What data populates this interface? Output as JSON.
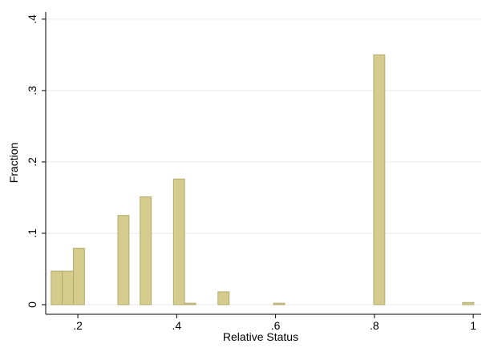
{
  "chart_data": {
    "type": "histogram",
    "x_label": "Relative Status",
    "y_label": "Fraction",
    "bins": [
      0.146,
      0.1685,
      0.191,
      0.2135,
      0.236,
      0.2585,
      0.281,
      0.3035,
      0.326,
      0.3485,
      0.371,
      0.3935,
      0.416,
      0.4385,
      0.461,
      0.4835,
      0.506,
      0.5285,
      0.551,
      0.5735,
      0.596,
      0.6185,
      0.641,
      0.6635,
      0.686,
      0.7085,
      0.731,
      0.7535,
      0.776,
      0.7985,
      0.821,
      0.8435,
      0.866,
      0.8885,
      0.911,
      0.9335,
      0.956,
      0.9785,
      1.001
    ],
    "values": [
      0.047,
      0.047,
      0.079,
      0,
      0,
      0,
      0.125,
      0,
      0.151,
      0,
      0,
      0.176,
      0.002,
      0,
      0,
      0.018,
      0,
      0,
      0,
      0,
      0.002,
      0,
      0,
      0,
      0,
      0,
      0,
      0,
      0,
      0.35,
      0,
      0,
      0,
      0,
      0,
      0,
      0,
      0.003
    ],
    "color": "#d4cb8c",
    "edge_color": "#b3aa6c",
    "xlim": [
      0.135,
      1.016
    ],
    "ylim": [
      -0.0135,
      0.41
    ],
    "xticks": [
      {
        "value": 0.2,
        "label": ".2"
      },
      {
        "value": 0.4,
        "label": ".4"
      },
      {
        "value": 0.6,
        "label": ".6"
      },
      {
        "value": 0.8,
        "label": ".8"
      },
      1
    ],
    "yticks": [
      0,
      {
        "value": 0.1,
        "label": ".1"
      },
      {
        "value": 0.2,
        "label": ".2"
      },
      {
        "value": 0.3,
        "label": ".3"
      },
      {
        "value": 0.4,
        "label": ".4"
      }
    ],
    "grid": true
  }
}
